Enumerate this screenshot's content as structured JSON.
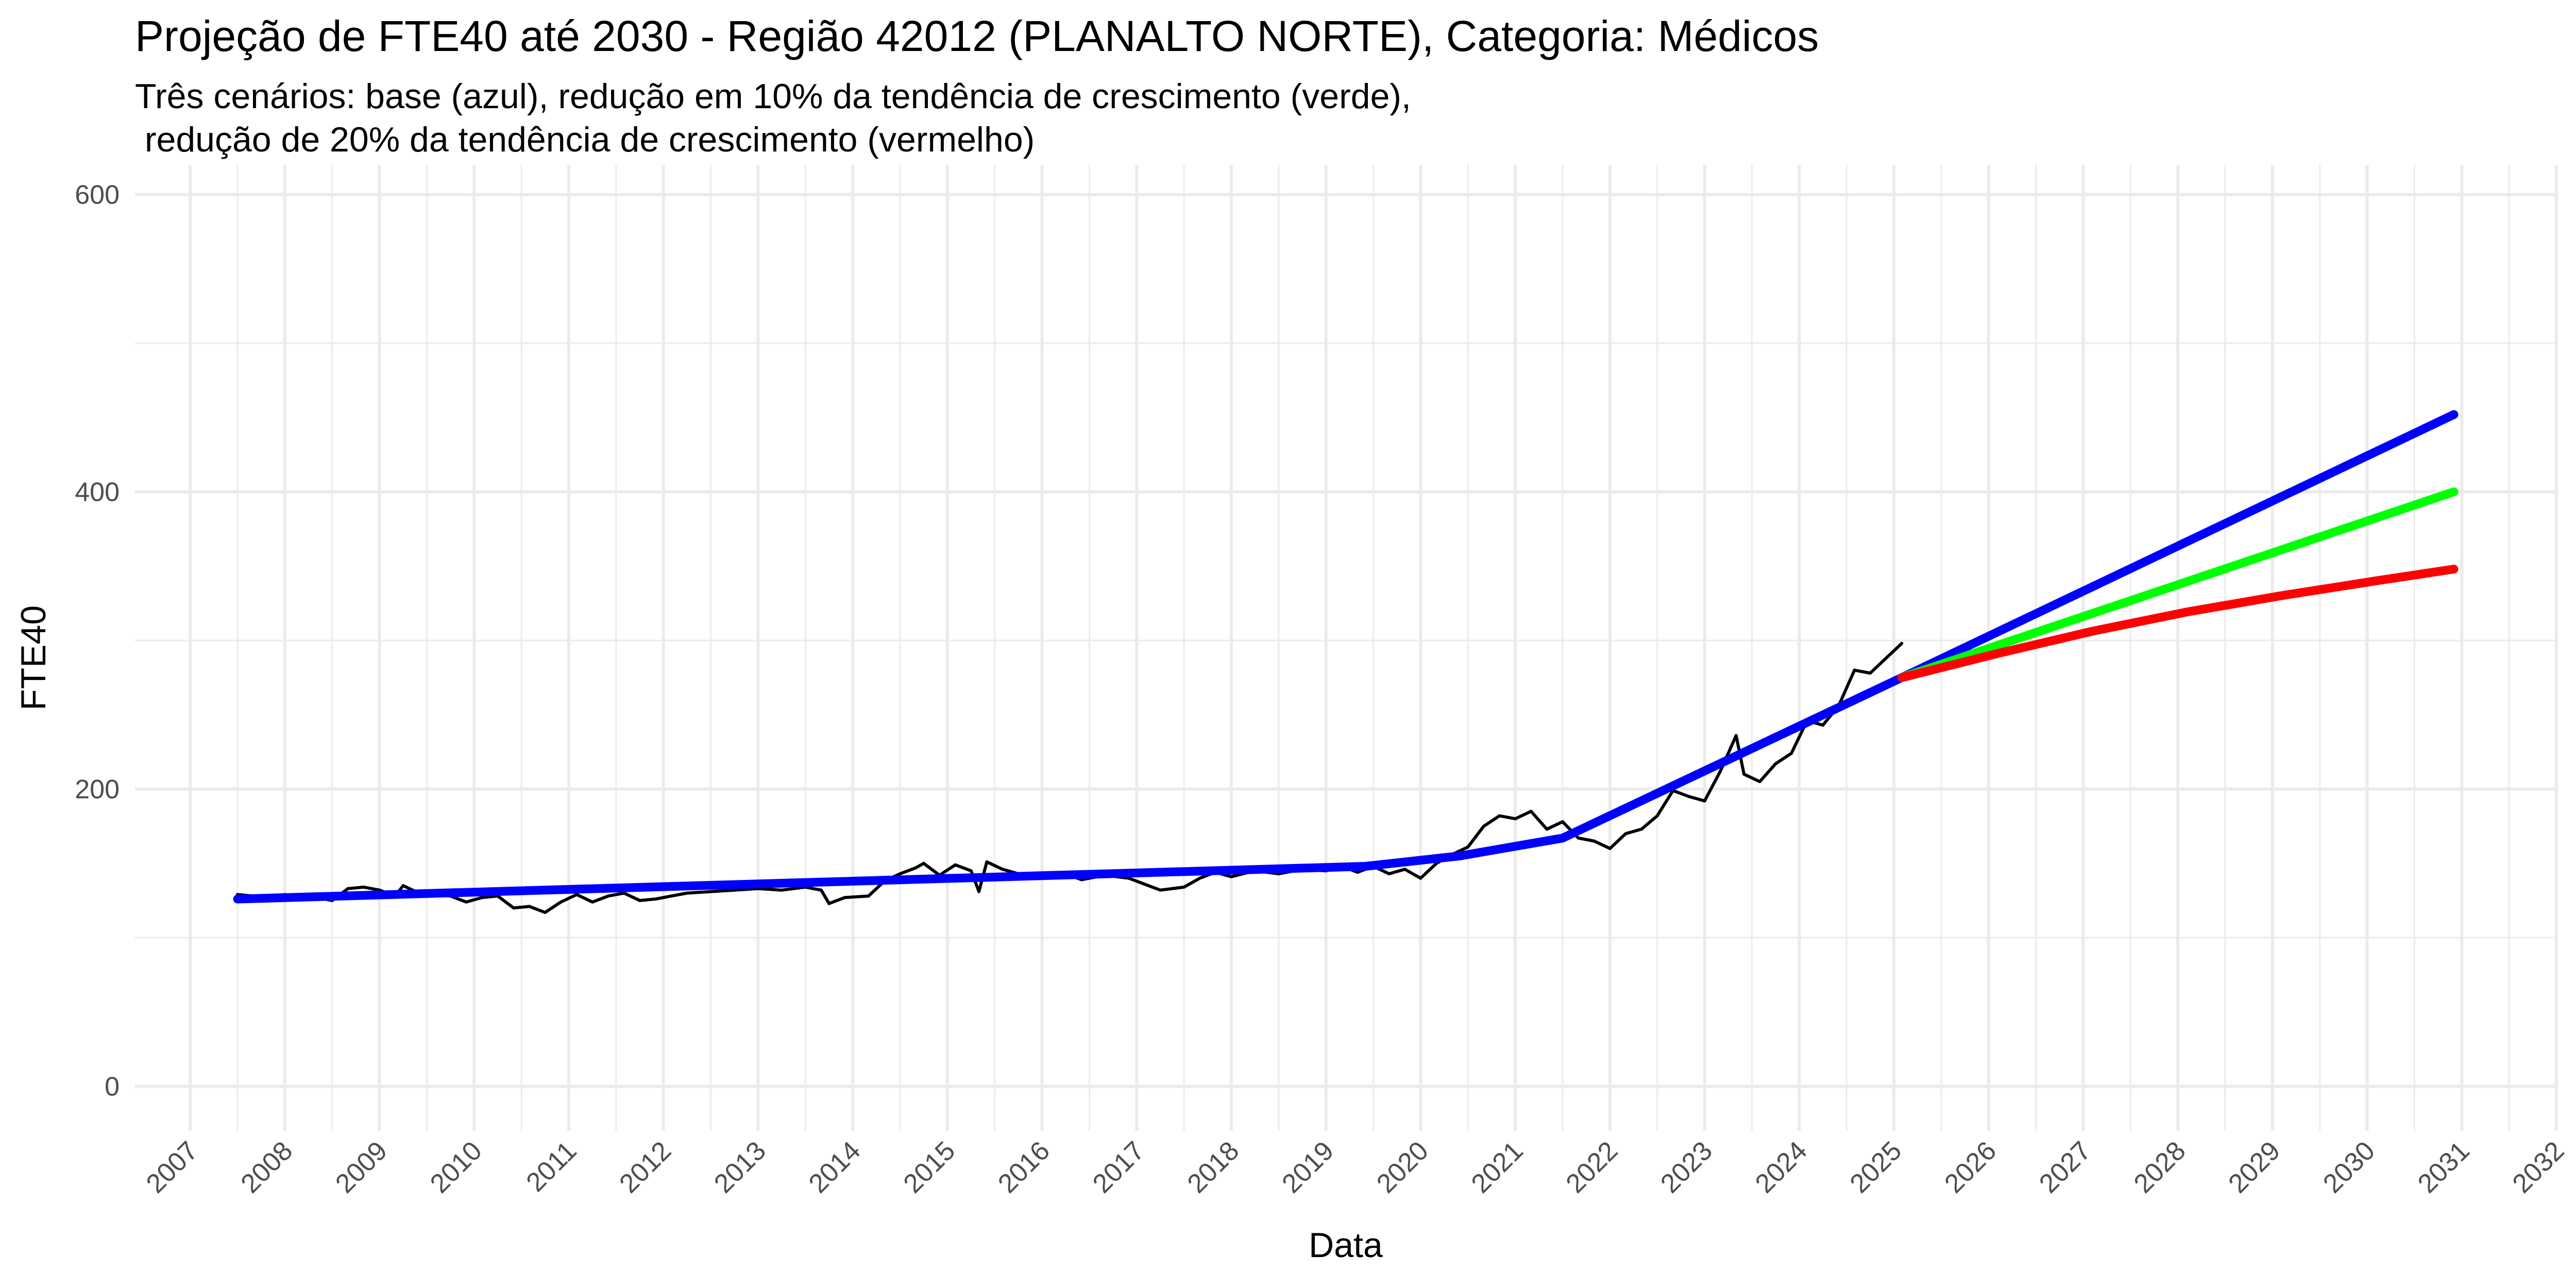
{
  "chart_data": {
    "type": "line",
    "title": "Projeção de FTE40 até 2030 - Região 42012 (PLANALTO NORTE), Categoria: Médicos",
    "subtitle": "Três cenários: base (azul), redução em 10% da tendência de crescimento (verde),\n redução de 20% da tendência de crescimento (vermelho)",
    "xlabel": "Data",
    "ylabel": "FTE40",
    "xlim": [
      "2006-06-01",
      "2032-01-01"
    ],
    "ylim": [
      -30,
      620
    ],
    "x_ticks": [
      "2007",
      "2008",
      "2009",
      "2010",
      "2011",
      "2012",
      "2013",
      "2014",
      "2015",
      "2016",
      "2017",
      "2018",
      "2019",
      "2020",
      "2021",
      "2022",
      "2023",
      "2024",
      "2025",
      "2026",
      "2027",
      "2028",
      "2029",
      "2030",
      "2031",
      "2032"
    ],
    "y_ticks": [
      0,
      200,
      400,
      600
    ],
    "y_tick_labels": [
      "0",
      "200",
      "400",
      "600"
    ],
    "grid": true,
    "legend": "none",
    "series": [
      {
        "color": "#000000",
        "style": "thin",
        "points": [
          [
            "2007-07-01",
            129
          ],
          [
            "2007-09-01",
            128
          ],
          [
            "2007-11-01",
            127
          ],
          [
            "2008-01-01",
            129
          ],
          [
            "2008-03-01",
            126
          ],
          [
            "2008-05-01",
            127
          ],
          [
            "2008-07-01",
            125
          ],
          [
            "2008-09-01",
            133
          ],
          [
            "2008-11-01",
            134
          ],
          [
            "2009-01-01",
            132
          ],
          [
            "2009-03-01",
            128
          ],
          [
            "2009-04-01",
            135
          ],
          [
            "2009-06-01",
            130
          ],
          [
            "2009-08-01",
            129
          ],
          [
            "2009-10-01",
            128
          ],
          [
            "2009-12-01",
            124
          ],
          [
            "2010-02-01",
            127
          ],
          [
            "2010-04-01",
            128
          ],
          [
            "2010-06-01",
            120
          ],
          [
            "2010-08-01",
            121
          ],
          [
            "2010-10-01",
            117
          ],
          [
            "2010-12-01",
            124
          ],
          [
            "2011-02-01",
            129
          ],
          [
            "2011-04-01",
            124
          ],
          [
            "2011-06-01",
            128
          ],
          [
            "2011-08-01",
            130
          ],
          [
            "2011-10-01",
            125
          ],
          [
            "2011-12-01",
            126
          ],
          [
            "2012-02-01",
            128
          ],
          [
            "2012-04-01",
            130
          ],
          [
            "2012-07-01",
            131
          ],
          [
            "2012-10-01",
            132
          ],
          [
            "2013-01-01",
            133
          ],
          [
            "2013-04-01",
            132
          ],
          [
            "2013-07-01",
            134
          ],
          [
            "2013-09-01",
            132
          ],
          [
            "2013-10-01",
            123
          ],
          [
            "2013-12-01",
            127
          ],
          [
            "2014-03-01",
            128
          ],
          [
            "2014-05-01",
            138
          ],
          [
            "2014-07-01",
            143
          ],
          [
            "2014-09-01",
            147
          ],
          [
            "2014-10-01",
            150
          ],
          [
            "2014-12-01",
            142
          ],
          [
            "2015-02-01",
            149
          ],
          [
            "2015-04-01",
            145
          ],
          [
            "2015-05-01",
            131
          ],
          [
            "2015-06-01",
            151
          ],
          [
            "2015-08-01",
            146
          ],
          [
            "2015-10-01",
            143
          ],
          [
            "2015-12-01",
            143
          ],
          [
            "2016-02-01",
            142
          ],
          [
            "2016-04-01",
            143
          ],
          [
            "2016-06-01",
            139
          ],
          [
            "2016-09-01",
            142
          ],
          [
            "2016-12-01",
            140
          ],
          [
            "2017-02-01",
            136
          ],
          [
            "2017-04-01",
            132
          ],
          [
            "2017-07-01",
            134
          ],
          [
            "2017-09-01",
            140
          ],
          [
            "2017-11-01",
            144
          ],
          [
            "2018-01-01",
            141
          ],
          [
            "2018-04-01",
            145
          ],
          [
            "2018-07-01",
            143
          ],
          [
            "2018-10-01",
            146
          ],
          [
            "2019-01-01",
            145
          ],
          [
            "2019-03-01",
            148
          ],
          [
            "2019-05-01",
            144
          ],
          [
            "2019-07-01",
            148
          ],
          [
            "2019-09-01",
            143
          ],
          [
            "2019-11-01",
            146
          ],
          [
            "2020-01-01",
            140
          ],
          [
            "2020-03-01",
            150
          ],
          [
            "2020-05-01",
            156
          ],
          [
            "2020-07-01",
            161
          ],
          [
            "2020-09-01",
            175
          ],
          [
            "2020-11-01",
            182
          ],
          [
            "2021-01-01",
            180
          ],
          [
            "2021-03-01",
            185
          ],
          [
            "2021-05-01",
            173
          ],
          [
            "2021-07-01",
            178
          ],
          [
            "2021-09-01",
            167
          ],
          [
            "2021-11-01",
            165
          ],
          [
            "2022-01-01",
            160
          ],
          [
            "2022-03-01",
            170
          ],
          [
            "2022-05-01",
            173
          ],
          [
            "2022-07-01",
            182
          ],
          [
            "2022-09-01",
            199
          ],
          [
            "2022-11-01",
            195
          ],
          [
            "2023-01-01",
            192
          ],
          [
            "2023-03-01",
            212
          ],
          [
            "2023-05-01",
            236
          ],
          [
            "2023-06-01",
            210
          ],
          [
            "2023-08-01",
            205
          ],
          [
            "2023-10-01",
            217
          ],
          [
            "2023-12-01",
            224
          ],
          [
            "2024-02-01",
            246
          ],
          [
            "2024-04-01",
            243
          ],
          [
            "2024-06-01",
            256
          ],
          [
            "2024-08-01",
            280
          ],
          [
            "2024-10-01",
            278
          ],
          [
            "2024-12-01",
            288
          ],
          [
            "2025-02-01",
            298
          ]
        ]
      },
      {
        "color": "#0000ff",
        "style": "thick",
        "points": [
          [
            "2007-07-01",
            126
          ],
          [
            "2019-06-01",
            148
          ],
          [
            "2020-06-01",
            155
          ],
          [
            "2021-07-01",
            167
          ],
          [
            "2025-02-01",
            275
          ],
          [
            "2030-12-01",
            452
          ]
        ]
      },
      {
        "color": "#00ff00",
        "style": "thick",
        "points": [
          [
            "2025-02-01",
            275
          ],
          [
            "2030-12-01",
            400
          ]
        ]
      },
      {
        "color": "#ff0000",
        "style": "thick",
        "points": [
          [
            "2025-02-01",
            275
          ],
          [
            "2026-02-01",
            291
          ],
          [
            "2027-02-01",
            306
          ],
          [
            "2028-02-01",
            319
          ],
          [
            "2029-02-01",
            330
          ],
          [
            "2030-02-01",
            340
          ],
          [
            "2030-12-01",
            348
          ]
        ]
      }
    ]
  }
}
